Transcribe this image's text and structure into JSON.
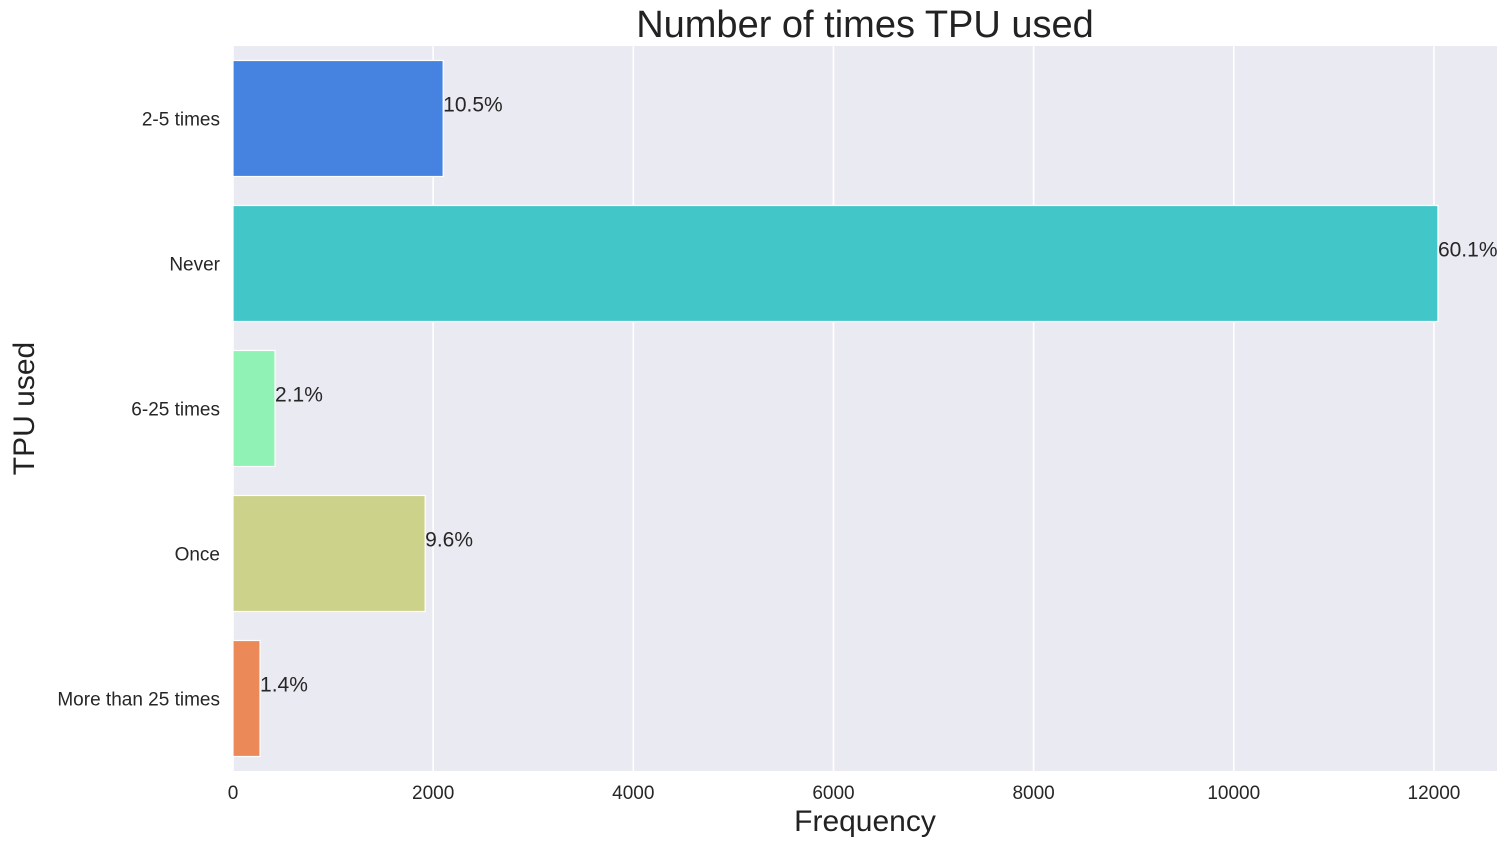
{
  "chart_data": {
    "type": "bar",
    "orientation": "horizontal",
    "title": "Number of times TPU used",
    "xlabel": "Frequency",
    "ylabel": "TPU used",
    "categories": [
      "2-5 times",
      "Never",
      "6-25 times",
      "Once",
      "More than 25 times"
    ],
    "values": [
      2100,
      12040,
      420,
      1920,
      270
    ],
    "data_labels": [
      "10.5%",
      "60.1%",
      "2.1%",
      "9.6%",
      "1.4%"
    ],
    "colors": [
      "#4682e0",
      "#43c6c8",
      "#90f2b4",
      "#ccd28a",
      "#ec8958"
    ],
    "xlim": [
      0,
      12630
    ],
    "xticks": [
      0,
      2000,
      4000,
      6000,
      8000,
      10000,
      12000
    ],
    "xtick_labels": [
      "0",
      "2000",
      "4000",
      "6000",
      "8000",
      "10000",
      "12000"
    ],
    "grid": true,
    "background": "#eaeaf2"
  }
}
